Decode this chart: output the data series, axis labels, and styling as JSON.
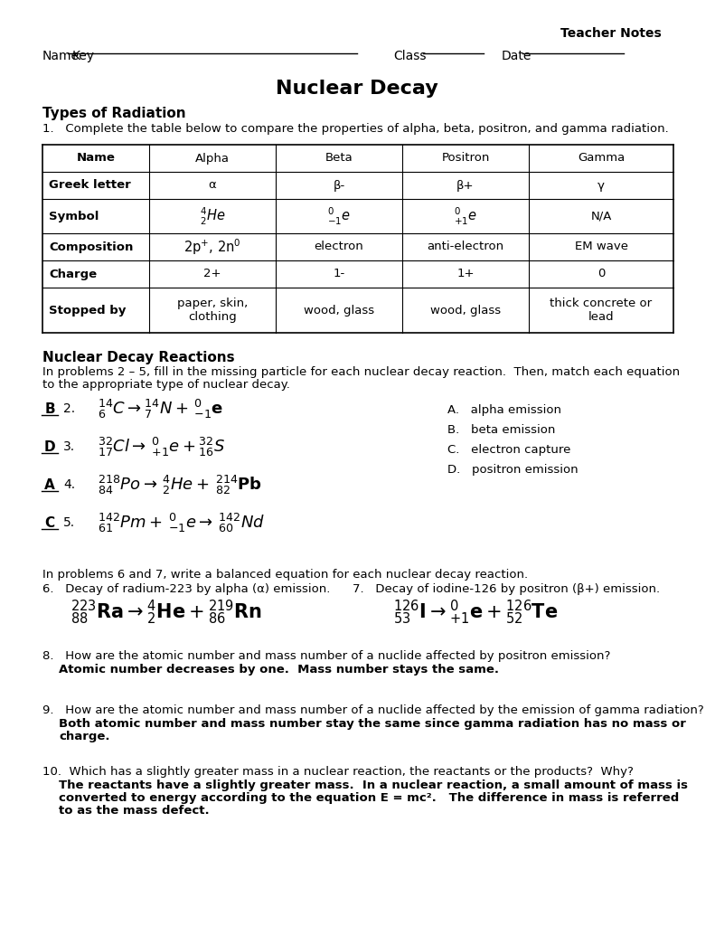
{
  "bg_color": "#ffffff",
  "text_color": "#000000",
  "title": "Nuclear Decay",
  "teacher_notes": "Teacher Notes",
  "name_label": "Name",
  "name_value": "Key",
  "class_label": "Class",
  "date_label": "Date",
  "section1_title": "Types of Radiation",
  "section1_q": "1.   Complete the table below to compare the properties of alpha, beta, positron, and gamma radiation.",
  "table_headers": [
    "Name",
    "Alpha",
    "Beta",
    "Positron",
    "Gamma"
  ],
  "table_rows": [
    [
      "Greek letter",
      "α",
      "β-",
      "β+",
      "γ"
    ],
    [
      "Symbol",
      "$^{4}_{2}He$",
      "$^{0}_{-1}e$",
      "$^{0}_{+1}e$",
      "N/A"
    ],
    [
      "Composition",
      "2p$^{+}$, 2n$^{0}$",
      "electron",
      "anti-electron",
      "EM wave"
    ],
    [
      "Charge",
      "2+",
      "1-",
      "1+",
      "0"
    ],
    [
      "Stopped by",
      "paper, skin,\nclothing",
      "wood, glass",
      "wood, glass",
      "thick concrete or\nlead"
    ]
  ],
  "section2_title": "Nuclear Decay Reactions",
  "section2_intro": "In problems 2 – 5, fill in the missing particle for each nuclear decay reaction.  Then, match each equation\nto the appropriate type of nuclear decay.",
  "reactions": [
    {
      "letter": "B",
      "num": "2.",
      "eq": "$^{14}_{6}C\\rightarrow^{14}_{7}N + \\,^{0}_{-1}\\mathbf{e}$"
    },
    {
      "letter": "D",
      "num": "3.",
      "eq": "$^{32}_{17}Cl\\rightarrow\\,^{0}_{+1}e+^{32}_{16}S$"
    },
    {
      "letter": "A",
      "num": "4.",
      "eq": "$^{218}_{84}Po\\rightarrow\\,^{4}_{2}He + \\,^{214}_{82}\\mathbf{Pb}$"
    },
    {
      "letter": "C",
      "num": "5.",
      "eq": "$^{142}_{61}Pm+\\,^{0}_{-1}e\\rightarrow\\,^{142}_{60}Nd$"
    }
  ],
  "decay_types": [
    "A.   alpha emission",
    "B.   beta emission",
    "C.   electron capture",
    "D.   positron emission"
  ],
  "problems67_intro": "In problems 6 and 7, write a balanced equation for each nuclear decay reaction.",
  "prob6_label": "6.   Decay of radium-223 by alpha (α) emission.",
  "prob6_eq": "$^{223}_{88}\\mathbf{Ra}\\rightarrow^{4}_{2}\\mathbf{He}+^{219}_{86}\\mathbf{Rn}$",
  "prob7_label": "7.   Decay of iodine-126 by positron (β+) emission.",
  "prob7_eq": "$^{126}_{53}\\mathbf{I}\\rightarrow^{0}_{+1}\\mathbf{e}+^{126}_{52}\\mathbf{Te}$",
  "q8": "8.   How are the atomic number and mass number of a nuclide affected by positron emission?",
  "q8_ans": "Atomic number decreases by one.  Mass number stays the same.",
  "q9": "9.   How are the atomic number and mass number of a nuclide affected by the emission of gamma radiation?",
  "q9_ans": "Both atomic number and mass number stay the same since gamma radiation has no mass or\ncharge.",
  "q10": "10.  Which has a slightly greater mass in a nuclear reaction, the reactants or the products?  Why?",
  "q10_ans": "The reactants have a slightly greater mass.  In a nuclear reaction, a small amount of mass is\nconverted to energy according to the equation E = mc².   The difference in mass is referred\nto as the mass defect."
}
